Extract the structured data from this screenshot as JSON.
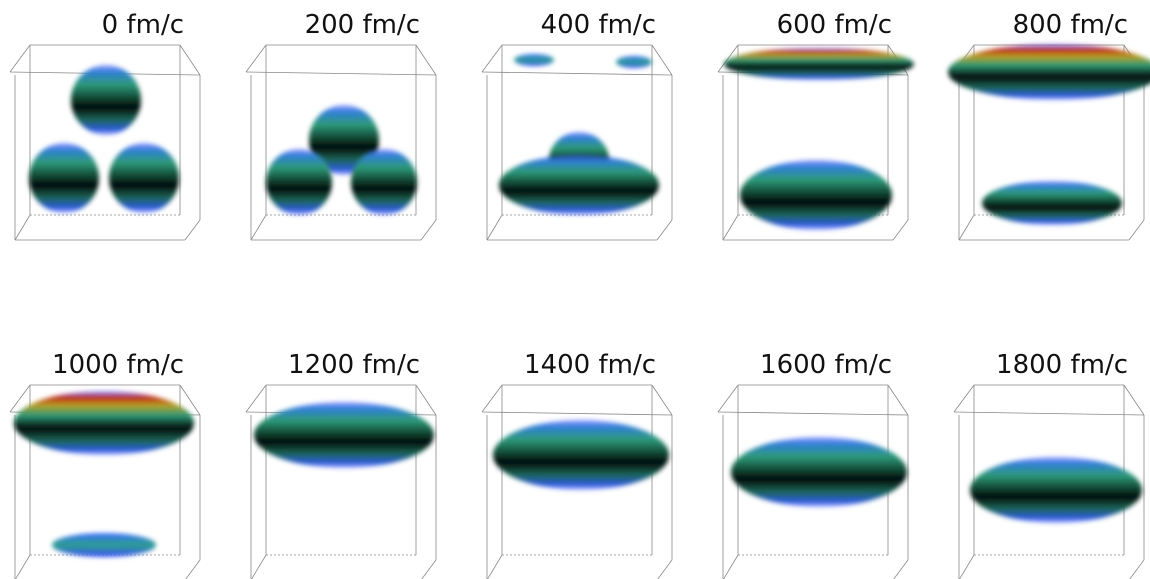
{
  "panels": [
    {
      "label": "0 fm/c"
    },
    {
      "label": "200 fm/c"
    },
    {
      "label": "400 fm/c"
    },
    {
      "label": "600 fm/c"
    },
    {
      "label": "800 fm/c"
    },
    {
      "label": "1000 fm/c"
    },
    {
      "label": "1200 fm/c"
    },
    {
      "label": "1400 fm/c"
    },
    {
      "label": "1600 fm/c"
    },
    {
      "label": "1800 fm/c"
    }
  ]
}
